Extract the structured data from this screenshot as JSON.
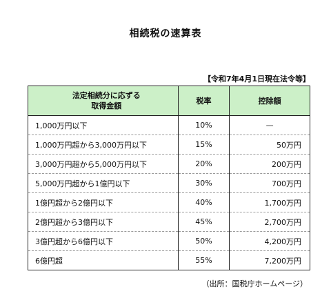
{
  "title": "相続税の速算表",
  "note": "【令和7年4月1日現在法令等】",
  "table": {
    "headers": {
      "bracket_line1": "法定相続分に応ずる",
      "bracket_line2": "取得金額",
      "rate": "税率",
      "deduction": "控除額"
    },
    "rows": [
      {
        "bracket": "1,000万円以下",
        "rate": "10%",
        "deduction": "—"
      },
      {
        "bracket": "1,000万円超から3,000万円以下",
        "rate": "15%",
        "deduction": "50万円"
      },
      {
        "bracket": "3,000万円超から5,000万円以下",
        "rate": "20%",
        "deduction": "200万円"
      },
      {
        "bracket": "5,000万円超から1億円以下",
        "rate": "30%",
        "deduction": "700万円"
      },
      {
        "bracket": "1億円超から2億円以下",
        "rate": "40%",
        "deduction": "1,700万円"
      },
      {
        "bracket": "2億円超から3億円以下",
        "rate": "45%",
        "deduction": "2,700万円"
      },
      {
        "bracket": "3億円超から6億円以下",
        "rate": "50%",
        "deduction": "4,200万円"
      },
      {
        "bracket": "6億円超",
        "rate": "55%",
        "deduction": "7,200万円"
      }
    ]
  },
  "source": "（出所：国税庁ホームページ）",
  "colors": {
    "header_bg": "#ccf0c8",
    "border": "#222222",
    "row_divider": "#9a9a9a"
  }
}
